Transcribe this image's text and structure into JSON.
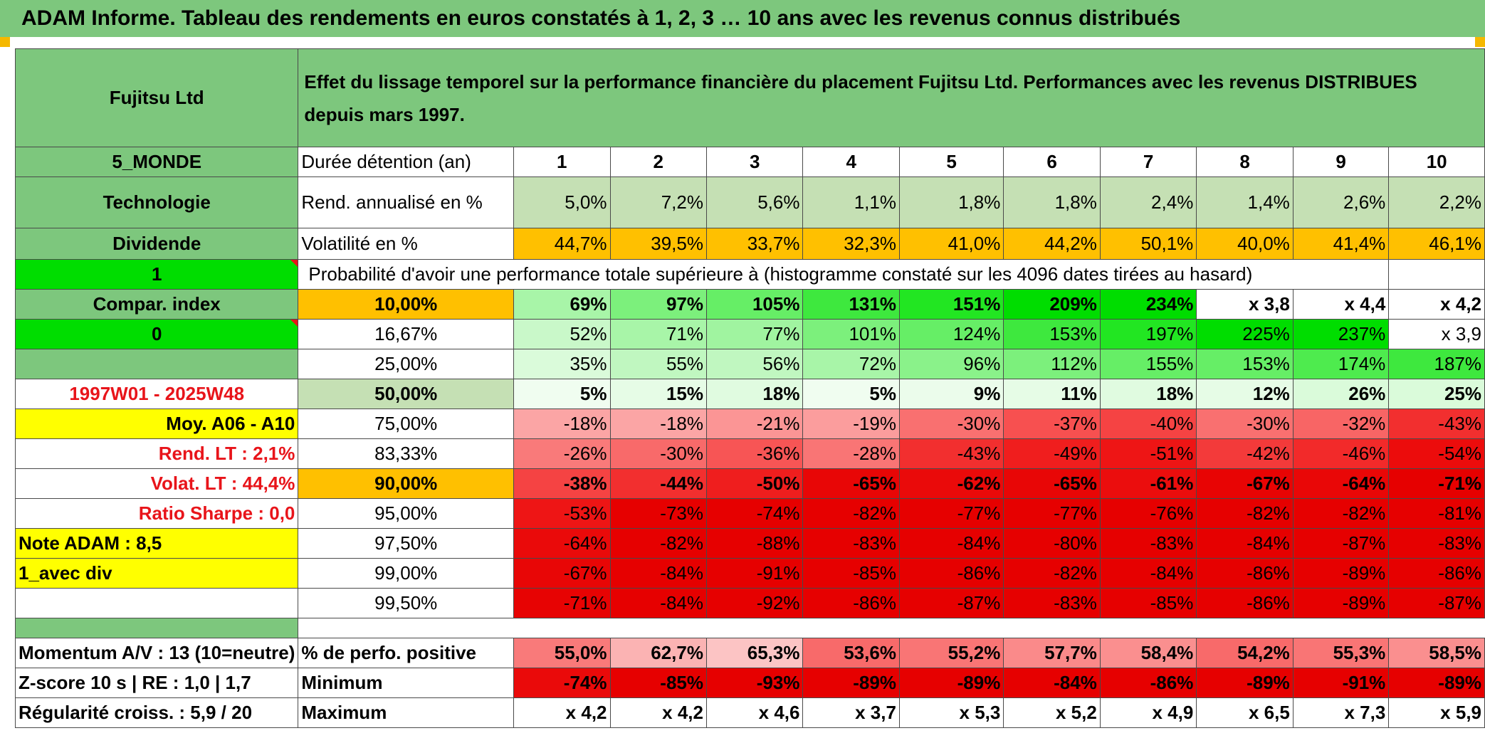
{
  "title": "ADAM Informe. Tableau des rendements en euros constatés à 1, 2, 3 … 10 ans avec les revenus connus distribués",
  "company": "Fujitsu Ltd",
  "description": "Effet du lissage temporel sur la performance financière du placement Fujitsu Ltd. Performances avec les revenus DISTRIBUES depuis mars 1997.",
  "left": {
    "region": "5_MONDE",
    "sector": "Technologie",
    "dividend": "Dividende",
    "flag1": "1",
    "compar": "Compar. index",
    "flag0": "0",
    "period": "1997W01 - 2025W48",
    "moy": "Moy. A06 - A10",
    "rend_lt": "Rend. LT :   2,1%",
    "volat_lt": "Volat. LT :   44,4%",
    "sharpe": "Ratio Sharpe :    0,0",
    "note": "Note ADAM : 8,5",
    "avec_div": "1_avec div",
    "momentum": "Momentum A/V : 13 (10=neutre)",
    "zscore": "Z-score 10 s | RE : 1,0 | 1,7",
    "regularite": "Régularité croiss. : 5,9 / 20"
  },
  "header": {
    "duree_label": "Durée détention (an)",
    "years": [
      "1",
      "2",
      "3",
      "4",
      "5",
      "6",
      "7",
      "8",
      "9",
      "10"
    ]
  },
  "rend": {
    "label": "Rend. annualisé en %",
    "values": [
      "5,0%",
      "7,2%",
      "5,6%",
      "1,1%",
      "1,8%",
      "1,8%",
      "2,4%",
      "1,4%",
      "2,6%",
      "2,2%"
    ]
  },
  "volat": {
    "label": "Volatilité en %",
    "values": [
      "44,7%",
      "39,5%",
      "33,7%",
      "32,3%",
      "41,0%",
      "44,2%",
      "50,1%",
      "40,0%",
      "41,4%",
      "46,1%"
    ]
  },
  "proba_label": "Probabilité d'avoir une performance totale supérieure à (histogramme constaté sur les 4096 dates tirées au hasard)",
  "quantiles": [
    {
      "label": "10,00%",
      "values": [
        "69%",
        "97%",
        "105%",
        "131%",
        "151%",
        "209%",
        "234%",
        "x 3,8",
        "x 4,4",
        "x 4,2"
      ]
    },
    {
      "label": "16,67%",
      "values": [
        "52%",
        "71%",
        "77%",
        "101%",
        "124%",
        "153%",
        "197%",
        "225%",
        "237%",
        "x 3,9"
      ]
    },
    {
      "label": "25,00%",
      "values": [
        "35%",
        "55%",
        "56%",
        "72%",
        "96%",
        "112%",
        "155%",
        "153%",
        "174%",
        "187%"
      ]
    },
    {
      "label": "50,00%",
      "values": [
        "5%",
        "15%",
        "18%",
        "5%",
        "9%",
        "11%",
        "18%",
        "12%",
        "26%",
        "25%"
      ]
    },
    {
      "label": "75,00%",
      "values": [
        "-18%",
        "-18%",
        "-21%",
        "-19%",
        "-30%",
        "-37%",
        "-40%",
        "-30%",
        "-32%",
        "-43%"
      ]
    },
    {
      "label": "83,33%",
      "values": [
        "-26%",
        "-30%",
        "-36%",
        "-28%",
        "-43%",
        "-49%",
        "-51%",
        "-42%",
        "-46%",
        "-54%"
      ]
    },
    {
      "label": "90,00%",
      "values": [
        "-38%",
        "-44%",
        "-50%",
        "-65%",
        "-62%",
        "-65%",
        "-61%",
        "-67%",
        "-64%",
        "-71%"
      ]
    },
    {
      "label": "95,00%",
      "values": [
        "-53%",
        "-73%",
        "-74%",
        "-82%",
        "-77%",
        "-77%",
        "-76%",
        "-82%",
        "-82%",
        "-81%"
      ]
    },
    {
      "label": "97,50%",
      "values": [
        "-64%",
        "-82%",
        "-88%",
        "-83%",
        "-84%",
        "-80%",
        "-83%",
        "-84%",
        "-87%",
        "-83%"
      ]
    },
    {
      "label": "99,00%",
      "values": [
        "-67%",
        "-84%",
        "-91%",
        "-85%",
        "-86%",
        "-82%",
        "-84%",
        "-86%",
        "-89%",
        "-86%"
      ]
    },
    {
      "label": "99,50%",
      "values": [
        "-71%",
        "-84%",
        "-92%",
        "-86%",
        "-87%",
        "-83%",
        "-85%",
        "-86%",
        "-89%",
        "-87%"
      ]
    }
  ],
  "positive": {
    "label": "% de perfo. positive",
    "values": [
      "55,0%",
      "62,7%",
      "65,3%",
      "53,6%",
      "55,2%",
      "57,7%",
      "58,4%",
      "54,2%",
      "55,3%",
      "58,5%"
    ]
  },
  "minimum": {
    "label": "Minimum",
    "values": [
      "-74%",
      "-85%",
      "-93%",
      "-89%",
      "-89%",
      "-84%",
      "-86%",
      "-89%",
      "-91%",
      "-89%"
    ]
  },
  "maximum": {
    "label": "Maximum",
    "values": [
      "x 4,2",
      "x 4,2",
      "x 4,6",
      "x 3,7",
      "x 5,3",
      "x 5,2",
      "x 4,9",
      "x 6,5",
      "x 7,3",
      "x 5,9"
    ]
  },
  "colors": {
    "quantiles": [
      [
        "#a8f5a8",
        "#7cf07c",
        "#66ee66",
        "#3ee83e",
        "#22e622",
        "#00dd00",
        "#00dd00",
        "#ffffff",
        "#ffffff",
        "#ffffff"
      ],
      [
        "#c9f8c9",
        "#a8f5a8",
        "#a0f4a0",
        "#7cf07c",
        "#66ee66",
        "#3ee83e",
        "#22e622",
        "#00dd00",
        "#00dd00",
        "#ffffff"
      ],
      [
        "#dafbda",
        "#c0f7c0",
        "#c0f7c0",
        "#a8f5a8",
        "#8af28a",
        "#7cf07c",
        "#66ee66",
        "#66ee66",
        "#4eeb4e",
        "#3ee83e"
      ],
      [
        "#f0fdf0",
        "#e6fce6",
        "#e0fbe0",
        "#f0fdf0",
        "#ebfceb",
        "#e6fce6",
        "#e0fbe0",
        "#e6fce6",
        "#dafbda",
        "#dafbda"
      ],
      [
        "#fba5a5",
        "#fba5a5",
        "#fb9595",
        "#fb9d9d",
        "#f97070",
        "#f75050",
        "#f54343",
        "#f97070",
        "#f86565",
        "#f22f2f"
      ],
      [
        "#f97a7a",
        "#f86a6a",
        "#f75555",
        "#f97575",
        "#f22f2f",
        "#f01e1e",
        "#ee1515",
        "#f33a3a",
        "#f22a2a",
        "#ec0c0c"
      ],
      [
        "#f54343",
        "#f22f2f",
        "#ef1e1e",
        "#e80606",
        "#ea0a0a",
        "#e80606",
        "#eb0d0d",
        "#e80404",
        "#e90707",
        "#e60000"
      ],
      [
        "#ee1515",
        "#e60000",
        "#e60000",
        "#e60000",
        "#e60000",
        "#e60000",
        "#e60000",
        "#e60000",
        "#e60000",
        "#e60000"
      ],
      [
        "#ea0a0a",
        "#e60000",
        "#e60000",
        "#e60000",
        "#e60000",
        "#e60000",
        "#e60000",
        "#e60000",
        "#e60000",
        "#e60000"
      ],
      [
        "#e80606",
        "#e60000",
        "#e60000",
        "#e60000",
        "#e60000",
        "#e60000",
        "#e60000",
        "#e60000",
        "#e60000",
        "#e60000"
      ],
      [
        "#e70303",
        "#e60000",
        "#e60000",
        "#e60000",
        "#e60000",
        "#e60000",
        "#e60000",
        "#e60000",
        "#e60000",
        "#e60000"
      ]
    ],
    "positive": [
      "#f97a7a",
      "#fbb3b3",
      "#fcc4c4",
      "#f86a6a",
      "#f97575",
      "#fa8a8a",
      "#fa8f8f",
      "#f86a6a",
      "#f97575",
      "#fa8f8f"
    ],
    "minimum": [
      "#ea0a0a",
      "#e60000",
      "#e60000",
      "#e60000",
      "#e60000",
      "#e60000",
      "#e60000",
      "#e60000",
      "#e60000",
      "#e60000"
    ]
  }
}
